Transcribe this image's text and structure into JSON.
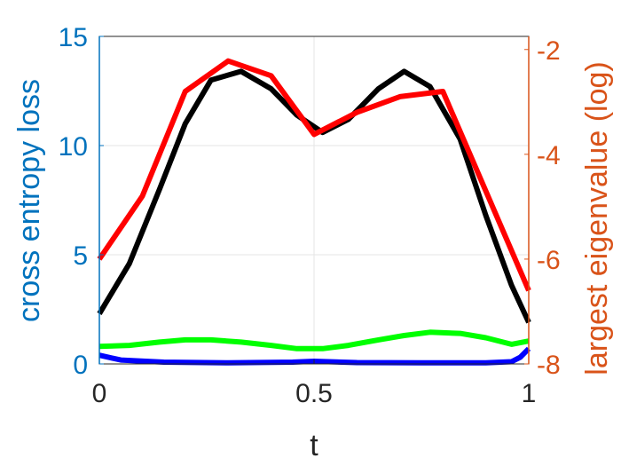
{
  "chart_data": {
    "type": "line",
    "xlabel": "t",
    "ylabel_left": "cross entropy loss",
    "ylabel_right": "largest eigenvalue (log)",
    "xlim": [
      0,
      1
    ],
    "ylim_left": [
      0,
      15
    ],
    "ylim_right": [
      -8,
      -1.75
    ],
    "xticks": [
      "0",
      "0.5",
      "1"
    ],
    "yticks_left": [
      "0",
      "5",
      "10",
      "15"
    ],
    "yticks_right": [
      "-8",
      "-6",
      "-4",
      "-2"
    ],
    "grid": true,
    "colors": {
      "left_axis": "#0072BD",
      "right_axis": "#D95319",
      "axes_box": "#262626",
      "grid": "#e6e6e6"
    },
    "series": [
      {
        "axis": "left",
        "color": "#000000",
        "x": [
          0,
          0.07,
          0.14,
          0.2,
          0.26,
          0.33,
          0.4,
          0.46,
          0.52,
          0.58,
          0.65,
          0.71,
          0.77,
          0.84,
          0.9,
          0.96,
          1.0
        ],
        "y": [
          2.3,
          4.6,
          8.0,
          11.0,
          13.0,
          13.4,
          12.6,
          11.4,
          10.6,
          11.2,
          12.6,
          13.4,
          12.7,
          10.3,
          6.8,
          3.6,
          1.9
        ]
      },
      {
        "axis": "right",
        "color": "#ff0000",
        "x": [
          0,
          0.1,
          0.2,
          0.3,
          0.4,
          0.5,
          0.6,
          0.7,
          0.8,
          0.9,
          1.0
        ],
        "y": [
          -6.0,
          -4.8,
          -2.8,
          -2.22,
          -2.5,
          -3.62,
          -3.2,
          -2.9,
          -2.8,
          -4.7,
          -6.6
        ]
      },
      {
        "axis": "left",
        "color": "#00ff00",
        "x": [
          0,
          0.07,
          0.14,
          0.2,
          0.26,
          0.33,
          0.4,
          0.46,
          0.52,
          0.58,
          0.65,
          0.71,
          0.77,
          0.84,
          0.9,
          0.96,
          1.0
        ],
        "y": [
          0.8,
          0.85,
          1.0,
          1.1,
          1.1,
          1.0,
          0.85,
          0.7,
          0.7,
          0.85,
          1.1,
          1.3,
          1.45,
          1.4,
          1.2,
          0.9,
          1.05
        ]
      },
      {
        "axis": "left",
        "color": "#0000ff",
        "x": [
          0,
          0.05,
          0.15,
          0.3,
          0.45,
          0.5,
          0.6,
          0.75,
          0.9,
          0.96,
          0.98,
          1.0
        ],
        "y": [
          0.4,
          0.18,
          0.08,
          0.05,
          0.08,
          0.12,
          0.06,
          0.05,
          0.05,
          0.1,
          0.3,
          0.7
        ]
      }
    ]
  }
}
